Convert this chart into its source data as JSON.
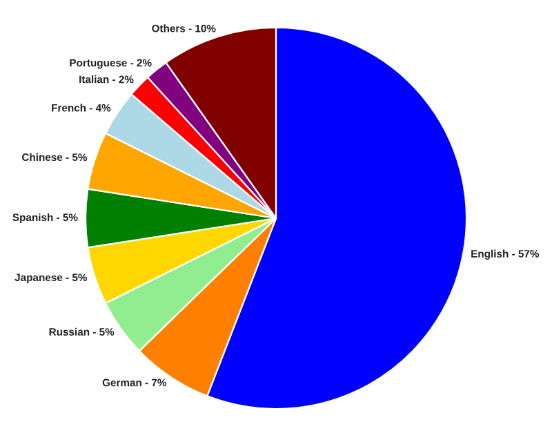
{
  "chart_data": {
    "type": "pie",
    "categories": [
      "English - 57%",
      "German - 7%",
      "Russian - 5%",
      "Japanese - 5%",
      "Spanish - 5%",
      "Chinese - 5%",
      "French - 4%",
      "Italian - 2%",
      "Portuguese - 2%",
      "Others - 10%"
    ],
    "values": [
      57,
      7,
      5,
      5,
      5,
      5,
      4,
      2,
      2,
      10
    ],
    "colors": [
      "#0000ff",
      "#ff8000",
      "#90ee90",
      "#ffd700",
      "#008000",
      "#ffa500",
      "#add8e6",
      "#ff0000",
      "#800080",
      "#800000"
    ],
    "legend": false
  }
}
